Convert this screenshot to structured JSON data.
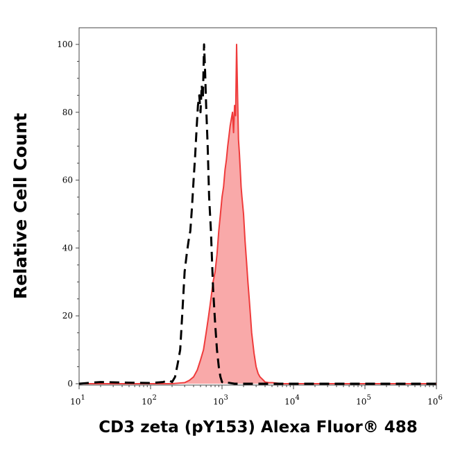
{
  "chart_data": {
    "type": "area",
    "title": "",
    "xlabel": "CD3 zeta (pY153) Alexa Fluor® 488",
    "ylabel": "Relative Cell Count",
    "x_scale": "log",
    "xlim": [
      10,
      1000000
    ],
    "ylim": [
      0,
      100
    ],
    "grid": false,
    "legend": "none",
    "x_ticks": [
      {
        "value": 10,
        "base": "10",
        "exp": "1"
      },
      {
        "value": 100,
        "base": "10",
        "exp": "2"
      },
      {
        "value": 1000,
        "base": "10",
        "exp": "3"
      },
      {
        "value": 10000,
        "base": "10",
        "exp": "4"
      },
      {
        "value": 100000,
        "base": "10",
        "exp": "5"
      },
      {
        "value": 1000000,
        "base": "10",
        "exp": "6"
      }
    ],
    "y_ticks": [
      {
        "value": 0,
        "label": "0"
      },
      {
        "value": 20,
        "label": "20"
      },
      {
        "value": 40,
        "label": "40"
      },
      {
        "value": 60,
        "label": "60"
      },
      {
        "value": 80,
        "label": "80"
      },
      {
        "value": 100,
        "label": "100"
      }
    ],
    "series": [
      {
        "style": "dashed-line",
        "color": "#000000",
        "x": [
          10,
          20,
          50,
          100,
          150,
          180,
          200,
          220,
          240,
          260,
          280,
          300,
          320,
          340,
          360,
          380,
          400,
          420,
          440,
          460,
          480,
          500,
          520,
          540,
          560,
          580,
          600,
          630,
          660,
          700,
          750,
          800,
          850,
          900,
          950,
          1000,
          1100,
          1200,
          1500,
          2000,
          10000,
          1000000
        ],
        "y": [
          0,
          0.5,
          0.3,
          0.2,
          0.5,
          1,
          0.5,
          2,
          6,
          10,
          22,
          33,
          38,
          42,
          45,
          52,
          60,
          67,
          75,
          82,
          85,
          80,
          88,
          84,
          100,
          92,
          82,
          70,
          55,
          45,
          28,
          18,
          10,
          5,
          2,
          0.5,
          0,
          0.3,
          0,
          0,
          0,
          0
        ]
      },
      {
        "style": "filled-area",
        "color": "#ef3b3b",
        "fill": "#f9a9a9",
        "x": [
          10,
          100,
          200,
          300,
          350,
          400,
          450,
          500,
          550,
          600,
          650,
          700,
          750,
          800,
          850,
          900,
          950,
          1000,
          1050,
          1100,
          1150,
          1200,
          1250,
          1300,
          1350,
          1400,
          1450,
          1500,
          1550,
          1600,
          1650,
          1700,
          1750,
          1800,
          1850,
          1900,
          2000,
          2100,
          2200,
          2300,
          2400,
          2500,
          2600,
          2700,
          2800,
          2900,
          3000,
          3200,
          3400,
          3600,
          3800,
          4000,
          4500,
          5000,
          7000,
          10000,
          100000,
          1000000
        ],
        "y": [
          0,
          0,
          0,
          0.3,
          1,
          2,
          4,
          7,
          10,
          15,
          20,
          25,
          30,
          33,
          38,
          45,
          50,
          55,
          58,
          63,
          66,
          70,
          73,
          76,
          78,
          80,
          74,
          82,
          79,
          100,
          85,
          72,
          68,
          63,
          58,
          55,
          50,
          42,
          36,
          30,
          25,
          20,
          15,
          12,
          9,
          7,
          5,
          3,
          2,
          1.5,
          1,
          0.5,
          0.3,
          0.3,
          0,
          0,
          0,
          0
        ]
      }
    ]
  }
}
